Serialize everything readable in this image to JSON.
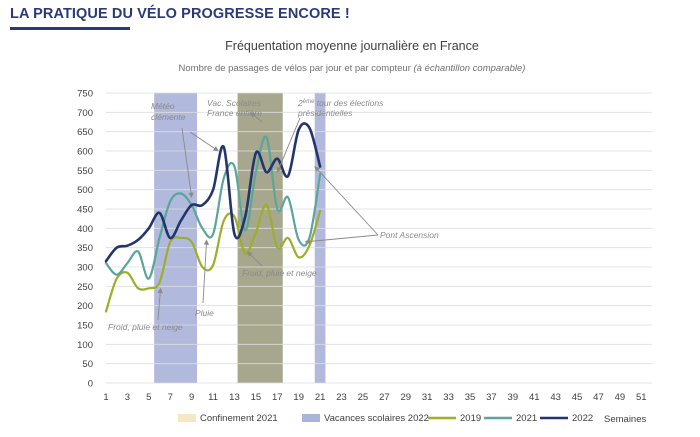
{
  "page": {
    "headline": "LA PRATIQUE DU VÉLO PROGRESSE ENCORE !"
  },
  "chart_data": {
    "type": "line",
    "title": "Fréquentation moyenne journalière en France",
    "subtitle": "Nombre de passages de vélos par jour et par compteur",
    "subtitle_note": "(à échantillon comparable)",
    "xlabel": "Semaines",
    "ylabel": "",
    "xlim": [
      1,
      52
    ],
    "ylim": [
      0,
      750
    ],
    "x_ticks": [
      1,
      3,
      5,
      7,
      9,
      11,
      13,
      15,
      17,
      19,
      21,
      23,
      25,
      27,
      29,
      31,
      33,
      35,
      37,
      39,
      41,
      43,
      45,
      47,
      49,
      51
    ],
    "y_ticks": [
      0,
      50,
      100,
      150,
      200,
      250,
      300,
      350,
      400,
      450,
      500,
      550,
      600,
      650,
      700,
      750
    ],
    "grid": true,
    "legend_position": "bottom",
    "bands": [
      {
        "name": "Confinement 2021",
        "color": "#f3e9c4",
        "ranges": [
          [
            13.3,
            17.5
          ]
        ]
      },
      {
        "name": "Vacances scolaires 2022",
        "color": "#aab3d9",
        "ranges": [
          [
            5.5,
            9.5
          ],
          [
            13.3,
            17.5
          ],
          [
            20.5,
            21.5
          ]
        ]
      }
    ],
    "series": [
      {
        "name": "2019",
        "color": "#9cae2a",
        "width": 2.2,
        "x": [
          1,
          2,
          3,
          4,
          5,
          6,
          7,
          8,
          9,
          10,
          11,
          12,
          13,
          14,
          15,
          16,
          17,
          18,
          19,
          20,
          21
        ],
        "y": [
          185,
          270,
          285,
          245,
          245,
          260,
          365,
          375,
          365,
          300,
          305,
          420,
          430,
          335,
          390,
          460,
          350,
          375,
          325,
          355,
          445
        ]
      },
      {
        "name": "2021",
        "color": "#5ba59a",
        "width": 2.2,
        "x": [
          1,
          2,
          3,
          4,
          5,
          6,
          7,
          8,
          9,
          10,
          11,
          12,
          13,
          14,
          15,
          16,
          17,
          18,
          19,
          20,
          21
        ],
        "y": [
          310,
          280,
          310,
          340,
          270,
          375,
          470,
          490,
          460,
          400,
          385,
          530,
          560,
          395,
          545,
          635,
          450,
          480,
          370,
          375,
          540
        ]
      },
      {
        "name": "2022",
        "color": "#23356d",
        "width": 2.6,
        "x": [
          1,
          2,
          3,
          4,
          5,
          6,
          7,
          8,
          9,
          10,
          11,
          12,
          13,
          14,
          15,
          16,
          17,
          18,
          19,
          20,
          21
        ],
        "y": [
          315,
          350,
          355,
          370,
          400,
          440,
          375,
          420,
          460,
          460,
          500,
          610,
          385,
          430,
          595,
          545,
          580,
          535,
          655,
          660,
          560
        ]
      }
    ],
    "annotations": [
      {
        "text_lines": [
          "Météo",
          "clémente"
        ],
        "target": [
          9,
          480
        ]
      },
      {
        "text_lines": [
          "Vac. Scolaires",
          "France entière"
        ],
        "target": [
          11.5,
          600
        ]
      },
      {
        "text_lines": [
          "2ème tour des élections",
          "présidentielles"
        ],
        "target": [
          17,
          545
        ]
      },
      {
        "text_lines": [
          "Pont Ascension"
        ],
        "target": [
          20.5,
          560
        ],
        "target2": [
          19.6,
          365
        ]
      },
      {
        "text_lines": [
          "Froid, pluie et neige"
        ],
        "target": [
          14.2,
          340
        ]
      },
      {
        "text_lines": [
          "Pluie"
        ],
        "target": [
          10.4,
          370
        ]
      },
      {
        "text_lines": [
          "Froid, pluie et neige"
        ],
        "target": [
          6.1,
          245
        ]
      }
    ]
  }
}
